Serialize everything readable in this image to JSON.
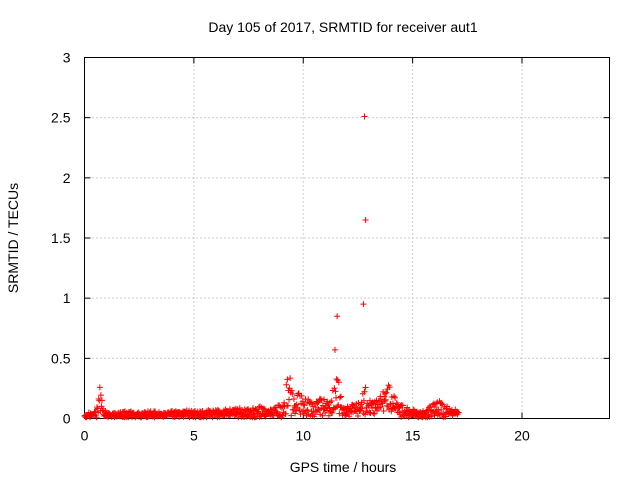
{
  "chart_data": {
    "type": "scatter",
    "title": "Day 105 of 2017, SRMTID for receiver aut1",
    "xlabel": "GPS time / hours",
    "ylabel": "SRMTID / TECUs",
    "xlim": [
      0,
      24
    ],
    "ylim": [
      0,
      3
    ],
    "x_ticks": [
      0,
      5,
      10,
      15,
      20
    ],
    "y_ticks": [
      0,
      0.5,
      1,
      1.5,
      2,
      2.5,
      3
    ],
    "x_tick_labels": [
      "0",
      "5",
      "10",
      "15",
      "20"
    ],
    "y_tick_labels": [
      "0",
      "0.5",
      "1",
      "1.5",
      "2",
      "2.5",
      "3"
    ],
    "grid": true,
    "marker": "+",
    "marker_color": "#ff0000",
    "series": [
      {
        "x": [
          0.0,
          0.2,
          0.4,
          0.6,
          0.7,
          0.75,
          0.8,
          0.85,
          0.9,
          1.0,
          1.2,
          1.5,
          2.0,
          2.5,
          3.0,
          3.5,
          4.0,
          4.5,
          5.0,
          5.5,
          6.0,
          6.5,
          7.0,
          7.5,
          8.0,
          8.3,
          8.6,
          9.0,
          9.2,
          9.3,
          9.4,
          9.5,
          9.6,
          9.8,
          10.0,
          10.3,
          10.6,
          10.8,
          11.0,
          11.2,
          11.4,
          11.5,
          11.6,
          11.8,
          12.0,
          12.3,
          12.6,
          12.8,
          13.0,
          13.3,
          13.6,
          13.8,
          14.0,
          14.3,
          14.6,
          15.0,
          15.5,
          16.0,
          16.2,
          16.5,
          17.0,
          17.1
        ],
        "y": [
          0.03,
          0.04,
          0.05,
          0.08,
          0.28,
          0.2,
          0.14,
          0.1,
          0.07,
          0.05,
          0.04,
          0.04,
          0.05,
          0.04,
          0.05,
          0.04,
          0.05,
          0.06,
          0.05,
          0.05,
          0.06,
          0.06,
          0.07,
          0.06,
          0.08,
          0.07,
          0.06,
          0.1,
          0.2,
          0.3,
          0.26,
          0.18,
          0.12,
          0.22,
          0.14,
          0.12,
          0.11,
          0.13,
          0.12,
          0.15,
          0.2,
          0.26,
          0.3,
          0.12,
          0.1,
          0.09,
          0.11,
          0.22,
          0.14,
          0.12,
          0.18,
          0.28,
          0.2,
          0.12,
          0.08,
          0.06,
          0.05,
          0.1,
          0.14,
          0.08,
          0.06,
          0.05
        ]
      },
      {
        "x": [
          11.45,
          11.55,
          12.75,
          12.8,
          12.85
        ],
        "y": [
          0.57,
          0.85,
          0.95,
          2.51,
          1.65
        ]
      }
    ]
  }
}
